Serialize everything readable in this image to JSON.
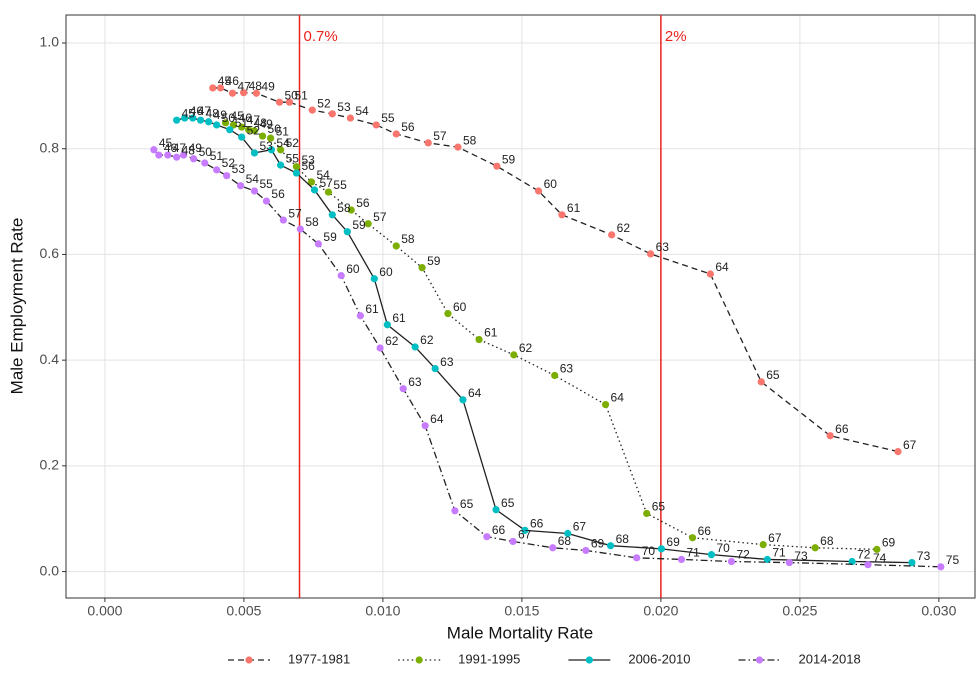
{
  "chart_data": {
    "type": "line",
    "x_label": "Male Mortality Rate",
    "y_label": "Male Employment Rate",
    "xlim": [
      -0.0014,
      0.0313
    ],
    "ylim": [
      -0.05,
      1.053
    ],
    "xticks": [
      {
        "value": 0,
        "label": "0.000"
      },
      {
        "value": 0.005,
        "label": "0.005"
      },
      {
        "value": 0.01,
        "label": "0.010"
      },
      {
        "value": 0.015,
        "label": "0.015"
      },
      {
        "value": 0.02,
        "label": "0.020"
      },
      {
        "value": 0.025,
        "label": "0.025"
      },
      {
        "value": 0.03,
        "label": "0.030"
      }
    ],
    "yticks": [
      {
        "value": 0,
        "label": "0.0"
      },
      {
        "value": 0.2,
        "label": "0.2"
      },
      {
        "value": 0.4,
        "label": "0.4"
      },
      {
        "value": 0.6,
        "label": "0.6"
      },
      {
        "value": 0.8,
        "label": "0.8"
      },
      {
        "value": 1,
        "label": "1.0"
      }
    ],
    "grid": true,
    "legend_position": "bottom",
    "annotations": [
      {
        "x": 0.007,
        "label": "0.7%",
        "color": "#e8221b"
      },
      {
        "x": 0.02,
        "label": "2%",
        "color": "#e8221b"
      }
    ],
    "series": [
      {
        "name": "1977-1981",
        "color": "#F8766D",
        "linestyle": "dashed",
        "x": [
          0.00388,
          0.00416,
          0.00459,
          0.00499,
          0.00545,
          0.00628,
          0.00664,
          0.00746,
          0.00818,
          0.00883,
          0.00976,
          0.01048,
          0.01163,
          0.0127,
          0.0141,
          0.0156,
          0.01644,
          0.01823,
          0.01963,
          0.02178,
          0.02361,
          0.02609,
          0.02853
        ],
        "values": [
          0.915,
          0.915,
          0.905,
          0.906,
          0.905,
          0.888,
          0.888,
          0.873,
          0.866,
          0.858,
          0.845,
          0.828,
          0.811,
          0.803,
          0.767,
          0.72,
          0.675,
          0.637,
          0.601,
          0.563,
          0.359,
          0.257,
          0.227
        ],
        "labels": [
          45,
          46,
          47,
          48,
          49,
          50,
          51,
          52,
          53,
          54,
          55,
          56,
          57,
          58,
          59,
          60,
          61,
          62,
          63,
          64,
          65,
          66,
          67
        ]
      },
      {
        "name": "1991-1995",
        "color": "#7CAE00",
        "linestyle": "dotted",
        "x": [
          0.00434,
          0.00463,
          0.00492,
          0.00517,
          0.00538,
          0.00567,
          0.00596,
          0.00632,
          0.00689,
          0.00743,
          0.00804,
          0.00886,
          0.00947,
          0.01048,
          0.01141,
          0.01234,
          0.01346,
          0.01471,
          0.01618,
          0.01801,
          0.01949,
          0.02114,
          0.02368,
          0.02555,
          0.02777
        ],
        "values": [
          0.849,
          0.845,
          0.841,
          0.836,
          0.834,
          0.824,
          0.82,
          0.798,
          0.766,
          0.737,
          0.718,
          0.684,
          0.658,
          0.616,
          0.575,
          0.488,
          0.439,
          0.41,
          0.371,
          0.316,
          0.11,
          0.064,
          0.051,
          0.045,
          0.042
        ],
        "labels": [
          45,
          46,
          47,
          48,
          49,
          50,
          51,
          52,
          53,
          54,
          55,
          56,
          57,
          58,
          59,
          60,
          61,
          62,
          63,
          64,
          65,
          66,
          67,
          68,
          69
        ]
      },
      {
        "name": "2006-2010",
        "color": "#00BFC4",
        "linestyle": "solid",
        "x": [
          0.00258,
          0.00287,
          0.00316,
          0.00344,
          0.00373,
          0.00402,
          0.00449,
          0.00492,
          0.00538,
          0.00599,
          0.00632,
          0.00689,
          0.00754,
          0.00818,
          0.00872,
          0.00969,
          0.01016,
          0.01116,
          0.01188,
          0.01288,
          0.01407,
          0.01511,
          0.01665,
          0.01819,
          0.02002,
          0.02182,
          0.02383,
          0.02688,
          0.02903
        ],
        "values": [
          0.854,
          0.858,
          0.858,
          0.854,
          0.851,
          0.845,
          0.836,
          0.822,
          0.792,
          0.798,
          0.769,
          0.754,
          0.722,
          0.675,
          0.643,
          0.554,
          0.467,
          0.425,
          0.384,
          0.325,
          0.117,
          0.078,
          0.072,
          0.049,
          0.043,
          0.032,
          0.023,
          0.019,
          0.017
        ],
        "labels": [
          45,
          46,
          47,
          48,
          49,
          50,
          51,
          52,
          53,
          54,
          55,
          56,
          57,
          58,
          59,
          60,
          61,
          62,
          63,
          64,
          65,
          66,
          67,
          68,
          69,
          70,
          71,
          72,
          73
        ]
      },
      {
        "name": "2014-2018",
        "color": "#C77CFF",
        "linestyle": "dashdot",
        "x": [
          0.00176,
          0.00194,
          0.00226,
          0.00258,
          0.00283,
          0.00319,
          0.00359,
          0.00402,
          0.00438,
          0.00488,
          0.00538,
          0.00581,
          0.00642,
          0.00703,
          0.00768,
          0.0085,
          0.00919,
          0.0099,
          0.01073,
          0.01152,
          0.01259,
          0.01374,
          0.01468,
          0.01611,
          0.0173,
          0.01913,
          0.02074,
          0.02254,
          0.02462,
          0.02745,
          0.03007
        ],
        "values": [
          0.798,
          0.788,
          0.788,
          0.784,
          0.788,
          0.781,
          0.773,
          0.76,
          0.749,
          0.73,
          0.72,
          0.701,
          0.665,
          0.648,
          0.62,
          0.56,
          0.484,
          0.423,
          0.346,
          0.276,
          0.115,
          0.066,
          0.057,
          0.045,
          0.04,
          0.026,
          0.023,
          0.019,
          0.017,
          0.013,
          0.009
        ],
        "labels": [
          45,
          46,
          47,
          48,
          49,
          50,
          51,
          52,
          53,
          54,
          55,
          56,
          57,
          58,
          59,
          60,
          61,
          62,
          63,
          64,
          65,
          66,
          67,
          68,
          69,
          70,
          71,
          72,
          73,
          74,
          75
        ]
      }
    ]
  }
}
